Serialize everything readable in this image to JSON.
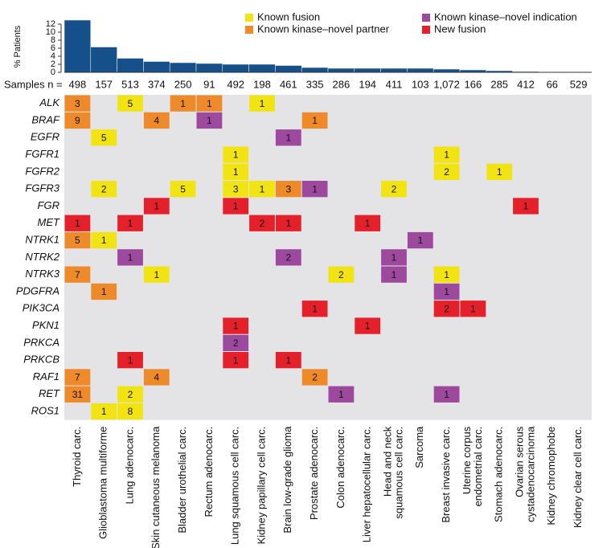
{
  "chart_data": {
    "type": "bar",
    "ylabel": "% Patients",
    "ylim": [
      0,
      13
    ],
    "yticks": [
      0,
      2,
      4,
      6,
      8,
      10,
      12
    ],
    "color": "#16508a",
    "values": [
      13,
      6.3,
      3.5,
      2.7,
      2.4,
      2.2,
      2.0,
      2.0,
      1.7,
      1.2,
      1.0,
      1.0,
      1.0,
      1.0,
      0.8,
      0.6,
      0.4,
      0.2,
      0,
      0
    ],
    "samples_label": "Samples n =",
    "samples": [
      "498",
      "157",
      "513",
      "374",
      "250",
      "91",
      "492",
      "198",
      "461",
      "335",
      "286",
      "194",
      "411",
      "103",
      "1,072",
      "166",
      "285",
      "412",
      "66",
      "529"
    ],
    "categories": [
      [
        "Thyroid carc."
      ],
      [
        "Glioblastoma multiforme"
      ],
      [
        "Lung adenocarc."
      ],
      [
        "Skin cutaneous melanoma"
      ],
      [
        "Bladder urothelial carc."
      ],
      [
        "Rectum adenocarc."
      ],
      [
        "Lung squamous cell carc."
      ],
      [
        "Kidney papillary cell carc."
      ],
      [
        "Brain low-grade glioma"
      ],
      [
        "Prostate adenocarc."
      ],
      [
        "Colon adenocarc."
      ],
      [
        "Liver hepatocellular carc."
      ],
      [
        "Head and neck",
        "squamous cell carc."
      ],
      [
        "Sarcoma"
      ],
      [
        "Breast invasive carc."
      ],
      [
        "Uterine corpus",
        "endometrial carc."
      ],
      [
        "Stomach adenocarc."
      ],
      [
        "Ovarian serous",
        "cystadenocarcinoma"
      ],
      [
        "Kidney chromophobe"
      ],
      [
        "Kidney clear cell carc."
      ]
    ],
    "genes": [
      "ALK",
      "BRAF",
      "EGFR",
      "FGFR1",
      "FGFR2",
      "FGFR3",
      "FGR",
      "MET",
      "NTRK1",
      "NTRK2",
      "NTRK3",
      "PDGFRA",
      "PIK3CA",
      "PKN1",
      "PRKCA",
      "PRKCB",
      "RAF1",
      "RET",
      "ROS1"
    ],
    "legend": [
      {
        "name": "Known fusion",
        "color": "#f1e412"
      },
      {
        "name": "Known kinase–novel partner",
        "color": "#ee8a2a"
      },
      {
        "name": "Known kinase–novel indication",
        "color": "#9d4a9e"
      },
      {
        "name": "New fusion",
        "color": "#e4202a"
      }
    ],
    "cells": [
      {
        "row": 0,
        "col": 0,
        "value": 3,
        "kind": 1
      },
      {
        "row": 0,
        "col": 2,
        "value": 5,
        "kind": 0
      },
      {
        "row": 0,
        "col": 4,
        "value": 1,
        "kind": 1
      },
      {
        "row": 0,
        "col": 5,
        "value": 1,
        "kind": 1
      },
      {
        "row": 0,
        "col": 7,
        "value": 1,
        "kind": 0
      },
      {
        "row": 1,
        "col": 0,
        "value": 9,
        "kind": 1
      },
      {
        "row": 1,
        "col": 3,
        "value": 4,
        "kind": 1
      },
      {
        "row": 1,
        "col": 5,
        "value": 1,
        "kind": 2
      },
      {
        "row": 1,
        "col": 9,
        "value": 1,
        "kind": 1
      },
      {
        "row": 2,
        "col": 1,
        "value": 5,
        "kind": 0
      },
      {
        "row": 2,
        "col": 8,
        "value": 1,
        "kind": 2
      },
      {
        "row": 3,
        "col": 6,
        "value": 1,
        "kind": 0
      },
      {
        "row": 3,
        "col": 14,
        "value": 1,
        "kind": 0
      },
      {
        "row": 4,
        "col": 6,
        "value": 1,
        "kind": 0
      },
      {
        "row": 4,
        "col": 14,
        "value": 2,
        "kind": 0
      },
      {
        "row": 4,
        "col": 16,
        "value": 1,
        "kind": 0
      },
      {
        "row": 5,
        "col": 1,
        "value": 2,
        "kind": 0
      },
      {
        "row": 5,
        "col": 4,
        "value": 5,
        "kind": 0
      },
      {
        "row": 5,
        "col": 6,
        "value": 3,
        "kind": 0
      },
      {
        "row": 5,
        "col": 7,
        "value": 1,
        "kind": 0
      },
      {
        "row": 5,
        "col": 8,
        "value": 3,
        "kind": 1
      },
      {
        "row": 5,
        "col": 9,
        "value": 1,
        "kind": 2
      },
      {
        "row": 5,
        "col": 12,
        "value": 2,
        "kind": 0
      },
      {
        "row": 6,
        "col": 3,
        "value": 1,
        "kind": 3
      },
      {
        "row": 6,
        "col": 6,
        "value": 1,
        "kind": 3
      },
      {
        "row": 6,
        "col": 17,
        "value": 1,
        "kind": 3
      },
      {
        "row": 7,
        "col": 0,
        "value": 1,
        "kind": 3
      },
      {
        "row": 7,
        "col": 2,
        "value": 1,
        "kind": 3
      },
      {
        "row": 7,
        "col": 7,
        "value": 2,
        "kind": 3
      },
      {
        "row": 7,
        "col": 8,
        "value": 1,
        "kind": 3
      },
      {
        "row": 7,
        "col": 11,
        "value": 1,
        "kind": 3
      },
      {
        "row": 8,
        "col": 0,
        "value": 5,
        "kind": 1
      },
      {
        "row": 8,
        "col": 1,
        "value": 1,
        "kind": 0
      },
      {
        "row": 8,
        "col": 13,
        "value": 1,
        "kind": 2
      },
      {
        "row": 9,
        "col": 2,
        "value": 1,
        "kind": 2
      },
      {
        "row": 9,
        "col": 8,
        "value": 2,
        "kind": 2
      },
      {
        "row": 9,
        "col": 12,
        "value": 1,
        "kind": 2
      },
      {
        "row": 10,
        "col": 0,
        "value": 7,
        "kind": 1
      },
      {
        "row": 10,
        "col": 3,
        "value": 1,
        "kind": 0
      },
      {
        "row": 10,
        "col": 10,
        "value": 2,
        "kind": 0
      },
      {
        "row": 10,
        "col": 12,
        "value": 1,
        "kind": 2
      },
      {
        "row": 10,
        "col": 14,
        "value": 1,
        "kind": 0
      },
      {
        "row": 11,
        "col": 1,
        "value": 1,
        "kind": 1
      },
      {
        "row": 11,
        "col": 14,
        "value": 1,
        "kind": 2
      },
      {
        "row": 12,
        "col": 9,
        "value": 1,
        "kind": 3
      },
      {
        "row": 12,
        "col": 14,
        "value": 2,
        "kind": 3
      },
      {
        "row": 12,
        "col": 15,
        "value": 1,
        "kind": 3
      },
      {
        "row": 13,
        "col": 6,
        "value": 1,
        "kind": 3
      },
      {
        "row": 13,
        "col": 11,
        "value": 1,
        "kind": 3
      },
      {
        "row": 14,
        "col": 6,
        "value": 2,
        "kind": 2
      },
      {
        "row": 15,
        "col": 2,
        "value": 1,
        "kind": 3
      },
      {
        "row": 15,
        "col": 6,
        "value": 1,
        "kind": 3
      },
      {
        "row": 15,
        "col": 8,
        "value": 1,
        "kind": 3
      },
      {
        "row": 16,
        "col": 0,
        "value": 7,
        "kind": 1
      },
      {
        "row": 16,
        "col": 3,
        "value": 4,
        "kind": 1
      },
      {
        "row": 16,
        "col": 9,
        "value": 2,
        "kind": 1
      },
      {
        "row": 17,
        "col": 0,
        "value": 31,
        "kind": 1
      },
      {
        "row": 17,
        "col": 2,
        "value": 2,
        "kind": 0
      },
      {
        "row": 17,
        "col": 10,
        "value": 1,
        "kind": 2
      },
      {
        "row": 17,
        "col": 14,
        "value": 1,
        "kind": 2
      },
      {
        "row": 18,
        "col": 1,
        "value": 1,
        "kind": 0
      },
      {
        "row": 18,
        "col": 2,
        "value": 8,
        "kind": 0
      }
    ]
  }
}
